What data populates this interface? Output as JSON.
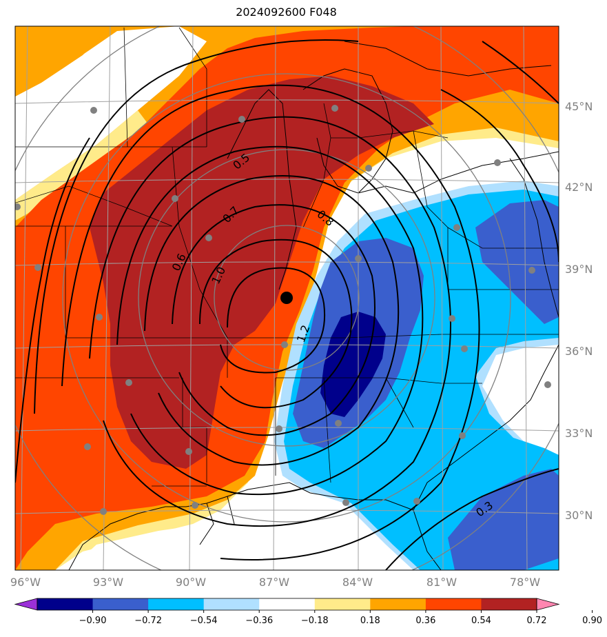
{
  "title": "2024092600 F048",
  "lat_labels": [
    "45°N",
    "42°N",
    "39°N",
    "36°N",
    "33°N",
    "30°N"
  ],
  "lon_labels": [
    "96°W",
    "93°W",
    "90°W",
    "87°W",
    "84°W",
    "81°W",
    "78°W"
  ],
  "contour_labels": [
    "0.5",
    "0.6",
    "0.7",
    "0.8",
    "1.0",
    "1.2",
    "0.3"
  ],
  "colorbar": {
    "ticks": [
      "−0.90",
      "−0.72",
      "−0.54",
      "−0.36",
      "−0.18",
      "0.18",
      "0.36",
      "0.54",
      "0.72",
      "0.90"
    ],
    "colors": [
      "#9b30d8",
      "#00008b",
      "#3a5fcd",
      "#00bfff",
      "#b0e0ff",
      "#ffffff",
      "#ffeb8a",
      "#ffa500",
      "#ff4500",
      "#b22222",
      "#ff86b0"
    ]
  },
  "fill_colors": {
    "light_yellow": "#ffeb8a",
    "orange": "#ffa500",
    "red_orange": "#ff4500",
    "dark_red": "#b22222",
    "light_blue": "#b0e0ff",
    "cyan": "#00bfff",
    "medium_blue": "#3a5fcd",
    "navy": "#00008b"
  },
  "center_marker_color": "#000000",
  "station_color": "#808080"
}
